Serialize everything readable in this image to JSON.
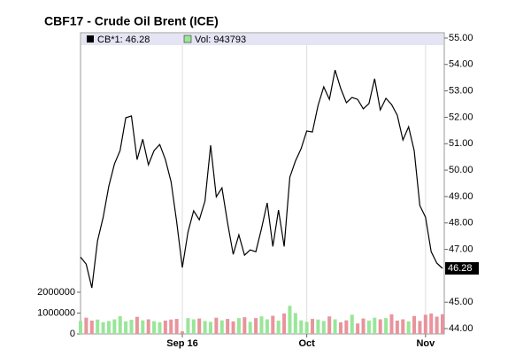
{
  "chart_data": {
    "type": "line",
    "title": "CBF17 - Crude Oil Brent (ICE)",
    "categories": [
      null,
      null,
      null,
      null,
      null,
      null,
      null,
      null,
      null,
      null,
      null,
      null,
      null,
      null,
      null,
      null,
      null,
      null,
      "Sep 16",
      null,
      null,
      null,
      null,
      null,
      null,
      null,
      null,
      null,
      null,
      null,
      null,
      null,
      null,
      null,
      null,
      null,
      null,
      null,
      null,
      null,
      "Oct",
      null,
      null,
      null,
      null,
      null,
      null,
      null,
      null,
      null,
      null,
      null,
      null,
      null,
      null,
      null,
      null,
      null,
      null,
      null,
      null,
      "Nov",
      null,
      null,
      null
    ],
    "series": [
      {
        "name": "CB*1: 46.28",
        "color": "#000000",
        "axis": "y",
        "values": [
          46.71,
          46.44,
          45.54,
          47.32,
          48.22,
          49.4,
          50.23,
          50.74,
          51.98,
          52.05,
          50.4,
          51.17,
          50.2,
          50.74,
          50.97,
          50.4,
          49.56,
          48.05,
          46.31,
          47.65,
          48.46,
          48.12,
          48.83,
          50.94,
          48.99,
          49.33,
          47.99,
          46.81,
          47.55,
          46.78,
          46.98,
          46.91,
          47.79,
          48.76,
          47.11,
          48.49,
          47.11,
          49.73,
          50.34,
          50.81,
          51.48,
          51.44,
          52.45,
          53.15,
          52.68,
          53.79,
          53.09,
          52.55,
          52.75,
          52.68,
          52.32,
          52.52,
          53.46,
          52.28,
          52.72,
          52.48,
          52.08,
          51.14,
          51.64,
          50.74,
          48.66,
          48.22,
          46.91,
          46.48,
          46.28
        ]
      },
      {
        "name": "Vol: 943793",
        "color": "#99e699",
        "down_color": "#e8949c",
        "type": "bar",
        "axis": "y2",
        "values": [
          620000,
          780000,
          640000,
          690000,
          560000,
          620000,
          700000,
          850000,
          600000,
          680000,
          820000,
          650000,
          700000,
          610000,
          560000,
          640000,
          690000,
          720000,
          120000,
          760000,
          700000,
          740000,
          620000,
          580000,
          780000,
          650000,
          720000,
          600000,
          760000,
          800000,
          580000,
          760000,
          840000,
          700000,
          870000,
          640000,
          980000,
          1350000,
          1000000,
          650000,
          580000,
          720000,
          690000,
          620000,
          840000,
          700000,
          560000,
          650000,
          920000,
          500000,
          740000,
          640000,
          780000,
          700000,
          760000,
          940000,
          640000,
          700000,
          600000,
          860000,
          620000,
          920000,
          980000,
          830000,
          943793
        ]
      }
    ],
    "ylim": [
      43.8,
      55.2
    ],
    "yticks": [
      {
        "value": 44,
        "label": "44.00"
      },
      {
        "value": 45,
        "label": "45.00"
      },
      {
        "value": 47,
        "label": "47.00"
      },
      {
        "value": 48,
        "label": "48.00"
      },
      {
        "value": 49,
        "label": "49.00"
      },
      {
        "value": 50,
        "label": "50.00"
      },
      {
        "value": 51,
        "label": "51.00"
      },
      {
        "value": 52,
        "label": "52.00"
      },
      {
        "value": 53,
        "label": "53.00"
      },
      {
        "value": 54,
        "label": "54.00"
      },
      {
        "value": 55,
        "label": "55.00"
      }
    ],
    "y2lim": [
      0,
      14470000
    ],
    "y2ticks": [
      0,
      1000000,
      2000000
    ],
    "grid": true
  }
}
